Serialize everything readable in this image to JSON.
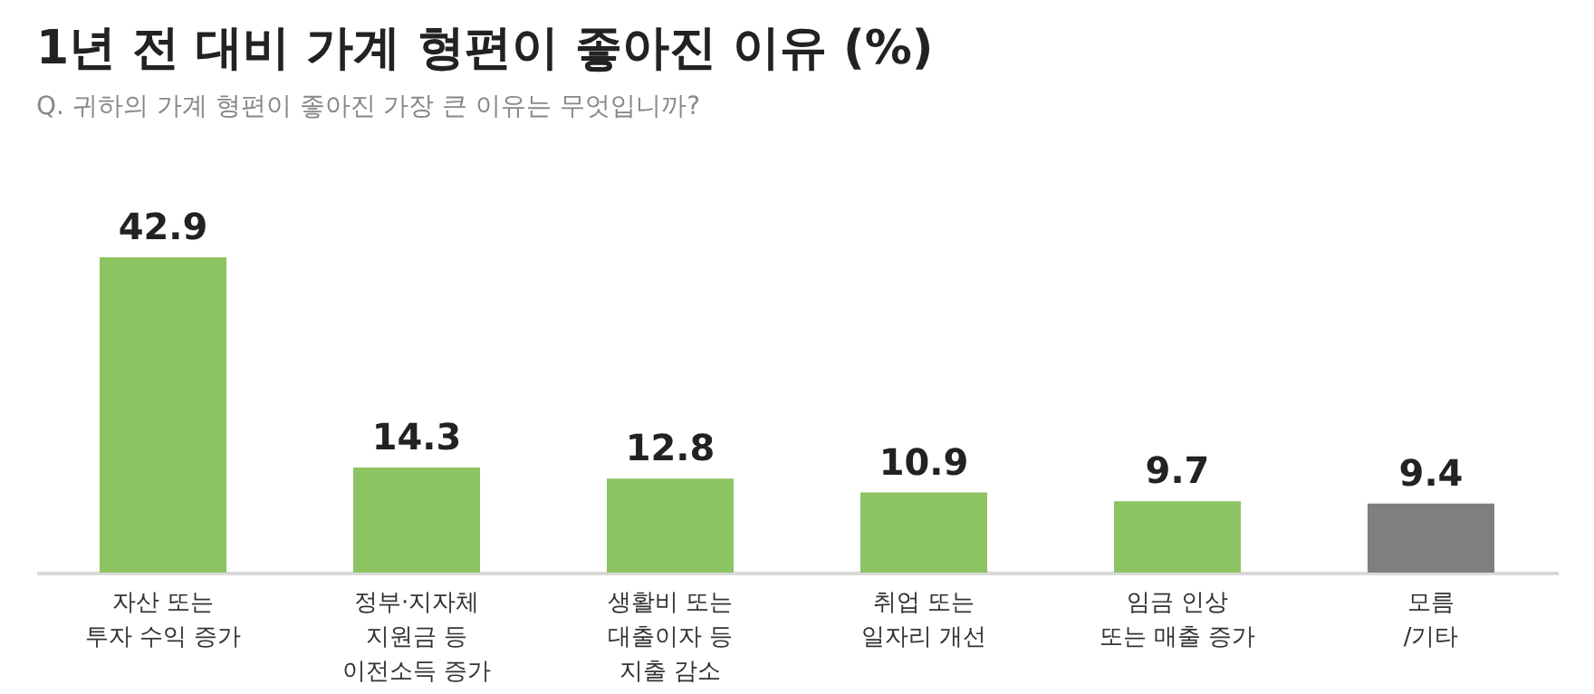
{
  "chart_data": {
    "type": "bar",
    "title": "1년 전 대비 가계 형편이 좋아진 이유 (%)",
    "subtitle": "Q. 귀하의 가계 형편이 좋아진 가장 큰 이유는 무엇입니까?",
    "categories": [
      "자산 또는\n투자 수익 증가",
      "정부·지자체\n지원금 등\n이전소득 증가",
      "생활비 또는\n대출이자 등\n지출 감소",
      "취업 또는\n일자리 개선",
      "임금 인상\n또는 매출 증가",
      "모름\n/기타"
    ],
    "values": [
      42.9,
      14.3,
      12.8,
      10.9,
      9.7,
      9.4
    ],
    "colors": [
      "#8cc462",
      "#8cc462",
      "#8cc462",
      "#8cc462",
      "#8cc462",
      "#7f7f7f"
    ],
    "data_labels": true
  }
}
